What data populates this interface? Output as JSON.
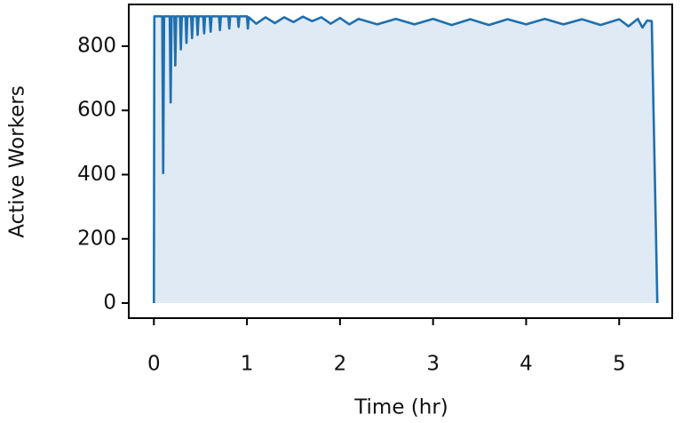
{
  "chart_data": {
    "type": "area-line",
    "x_label": "Time (hr)",
    "y_label": "Active Workers",
    "line_color": "#1f6fae",
    "fill_color": "#dfeaf5",
    "xlim": [
      -0.27,
      5.57
    ],
    "ylim": [
      -47,
      930
    ],
    "xticks": [
      0,
      1,
      2,
      3,
      4,
      5
    ],
    "yticks": [
      0,
      200,
      400,
      600,
      800
    ],
    "x": [
      0,
      0.005,
      0.09,
      0.1,
      0.11,
      0.17,
      0.18,
      0.19,
      0.22,
      0.23,
      0.24,
      0.28,
      0.29,
      0.3,
      0.34,
      0.35,
      0.36,
      0.4,
      0.41,
      0.42,
      0.46,
      0.47,
      0.48,
      0.53,
      0.54,
      0.55,
      0.6,
      0.61,
      0.62,
      0.7,
      0.71,
      0.72,
      0.8,
      0.81,
      0.82,
      0.9,
      0.91,
      0.92,
      1.0,
      1.01,
      1.02,
      1.1,
      1.2,
      1.3,
      1.4,
      1.5,
      1.6,
      1.7,
      1.8,
      1.9,
      2.0,
      2.1,
      2.2,
      2.4,
      2.6,
      2.8,
      3.0,
      3.2,
      3.4,
      3.6,
      3.8,
      4.0,
      4.2,
      4.4,
      4.6,
      4.8,
      5.0,
      5.1,
      5.2,
      5.25,
      5.3,
      5.35,
      5.41
    ],
    "values": [
      0,
      893,
      893,
      405,
      893,
      893,
      625,
      893,
      893,
      740,
      893,
      893,
      790,
      893,
      893,
      810,
      893,
      893,
      825,
      893,
      893,
      835,
      893,
      893,
      840,
      893,
      893,
      845,
      893,
      893,
      850,
      893,
      893,
      855,
      893,
      893,
      860,
      893,
      893,
      855,
      890,
      870,
      890,
      872,
      890,
      875,
      892,
      878,
      890,
      870,
      888,
      868,
      885,
      868,
      885,
      868,
      885,
      866,
      884,
      866,
      884,
      868,
      885,
      868,
      884,
      866,
      884,
      862,
      885,
      858,
      880,
      878,
      0
    ]
  }
}
